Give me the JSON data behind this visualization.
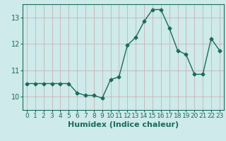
{
  "x": [
    0,
    1,
    2,
    3,
    4,
    5,
    6,
    7,
    8,
    9,
    10,
    11,
    12,
    13,
    14,
    15,
    16,
    17,
    18,
    19,
    20,
    21,
    22,
    23
  ],
  "y": [
    10.5,
    10.5,
    10.5,
    10.5,
    10.5,
    10.5,
    10.15,
    10.05,
    10.05,
    9.95,
    10.65,
    10.75,
    11.95,
    12.25,
    12.85,
    13.3,
    13.3,
    12.6,
    11.75,
    11.6,
    10.85,
    10.85,
    12.2,
    11.75
  ],
  "line_color": "#1a6b5a",
  "marker": "D",
  "marker_size": 2.5,
  "bg_color": "#ceeaea",
  "grid_color": "#c8a8a8",
  "xlabel": "Humidex (Indice chaleur)",
  "xlim": [
    -0.5,
    23.5
  ],
  "ylim": [
    9.5,
    13.5
  ],
  "yticks": [
    10,
    11,
    12,
    13
  ],
  "xlabel_fontsize": 8,
  "tick_fontsize": 6.5,
  "ytick_fontsize": 7
}
